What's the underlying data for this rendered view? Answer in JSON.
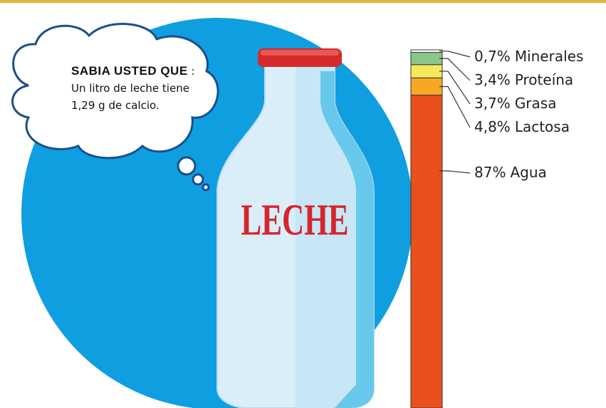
{
  "chart_data": {
    "type": "stacked-bar",
    "series": [
      {
        "name": "Minerales",
        "color": "#ffffff",
        "values": [
          0.7
        ],
        "value_labels": [
          "0,7%"
        ]
      },
      {
        "name": "Proteína",
        "color": "#8cc68a",
        "values": [
          3.4
        ],
        "value_labels": [
          "3,4%"
        ]
      },
      {
        "name": "Grasa",
        "color": "#f5e85a",
        "values": [
          3.7
        ],
        "value_labels": [
          "3,7%"
        ]
      },
      {
        "name": "Lactosa",
        "color": "#f7a823",
        "values": [
          4.8
        ],
        "value_labels": [
          "4,8%"
        ]
      },
      {
        "name": "Agua",
        "color": "#e8501e",
        "values": [
          87
        ],
        "value_labels": [
          "87%"
        ]
      }
    ],
    "ylim": [
      0,
      100
    ],
    "annotations": [
      "SABIA USTED QUE",
      ": Un litro de leche tiene 1,29 g de calcio.",
      "LECHE"
    ]
  }
}
